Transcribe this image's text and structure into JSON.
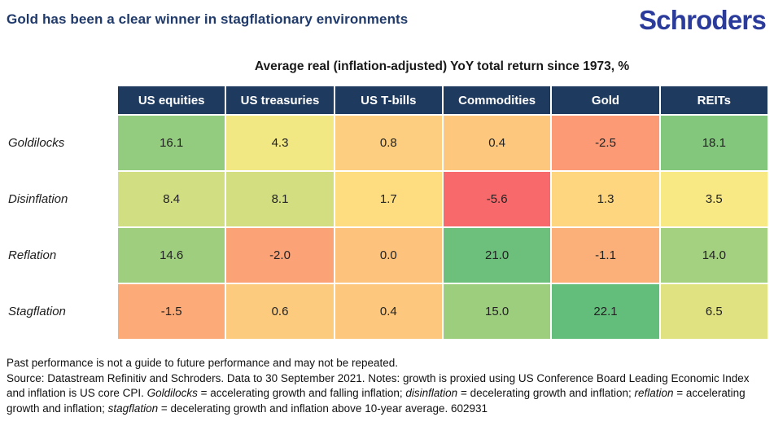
{
  "header": {
    "title": "Gold has been a clear winner in stagflationary environments",
    "logo_text": "Schroders"
  },
  "colors": {
    "page_bg": "#FFFFFF",
    "title": "#1F3A6B",
    "logo": "#2A3B9B",
    "table_header_bg": "#1E3A5F"
  },
  "chart_data": {
    "type": "heatmap",
    "title": "Average real (inflation-adjusted) YoY total return since 1973, %",
    "columns": [
      "US equities",
      "US treasuries",
      "US T-bills",
      "Commodities",
      "Gold",
      "REITs"
    ],
    "rows": [
      "Goldilocks",
      "Disinflation",
      "Reflation",
      "Stagflation"
    ],
    "values": [
      [
        16.1,
        4.3,
        0.8,
        0.4,
        -2.5,
        18.1
      ],
      [
        8.4,
        8.1,
        1.7,
        -5.6,
        1.3,
        3.5
      ],
      [
        14.6,
        -2.0,
        0.0,
        21.0,
        -1.1,
        14.0
      ],
      [
        -1.5,
        0.6,
        0.4,
        15.0,
        22.1,
        6.5
      ]
    ],
    "cell_colors": [
      [
        "#93CC7E",
        "#F1E783",
        "#FDCE7F",
        "#FDC87D",
        "#FB9A74",
        "#83C77D"
      ],
      [
        "#D1DE81",
        "#D3DE81",
        "#FEDD81",
        "#F8696B",
        "#FED680",
        "#F8E984"
      ],
      [
        "#9FCF7E",
        "#FBA276",
        "#FDC27C",
        "#6CC07B",
        "#FCB079",
        "#A4D17F"
      ],
      [
        "#FCAA77",
        "#FDCB7E",
        "#FDC87D",
        "#9CCE7E",
        "#63BE7B",
        "#E0E282"
      ]
    ],
    "color_scale": {
      "low": "#F8696B",
      "mid": "#FFEB84",
      "high": "#63BE7B"
    },
    "value_format": "one_decimal",
    "legend": "none",
    "grid": "white 2px cell separators"
  },
  "footer": {
    "disclaimer": "Past performance is not a guide to future performance and may not be repeated.",
    "source_segments": [
      {
        "text": "Source: Datastream Refinitiv and Schroders. Data to 30 September 2021. Notes: growth is proxied using US Conference Board Leading Economic Index and inflation is US core CPI. ",
        "italic": false
      },
      {
        "text": "Goldilocks",
        "italic": true
      },
      {
        "text": " = accelerating growth and falling inflation; ",
        "italic": false
      },
      {
        "text": "disinflation",
        "italic": true
      },
      {
        "text": " = decelerating growth and inflation; ",
        "italic": false
      },
      {
        "text": "reflation",
        "italic": true
      },
      {
        "text": " = accelerating growth and inflation; ",
        "italic": false
      },
      {
        "text": "stagflation",
        "italic": true
      },
      {
        "text": " = decelerating growth and inflation above 10-year average. 602931",
        "italic": false
      }
    ]
  }
}
